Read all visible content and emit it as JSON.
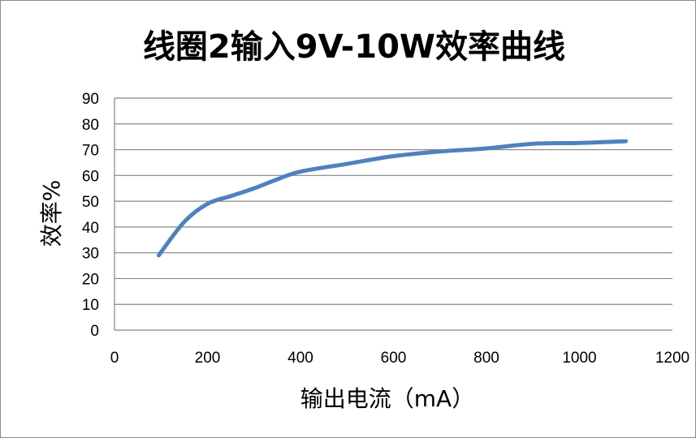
{
  "chart_data": {
    "type": "line",
    "title": "线圈2输入9V-10W效率曲线",
    "xlabel": "输出电流（mA）",
    "ylabel": "效率%",
    "xlim": [
      0,
      1200
    ],
    "ylim": [
      0,
      90
    ],
    "x_ticks": [
      "0",
      "200",
      "400",
      "600",
      "800",
      "1000",
      "1200"
    ],
    "y_ticks": [
      "0",
      "10",
      "20",
      "30",
      "40",
      "50",
      "60",
      "70",
      "80",
      "90"
    ],
    "grid": true,
    "legend": "none",
    "series": [
      {
        "color": "#4f81bd",
        "points": [
          [
            95,
            29
          ],
          [
            150,
            42
          ],
          [
            200,
            49
          ],
          [
            250,
            52
          ],
          [
            300,
            55
          ],
          [
            350,
            58.5
          ],
          [
            400,
            61.5
          ],
          [
            500,
            64.5
          ],
          [
            600,
            67.5
          ],
          [
            700,
            69.3
          ],
          [
            800,
            70.5
          ],
          [
            900,
            72.3
          ],
          [
            1000,
            72.6
          ],
          [
            1100,
            73.3
          ]
        ]
      }
    ]
  }
}
